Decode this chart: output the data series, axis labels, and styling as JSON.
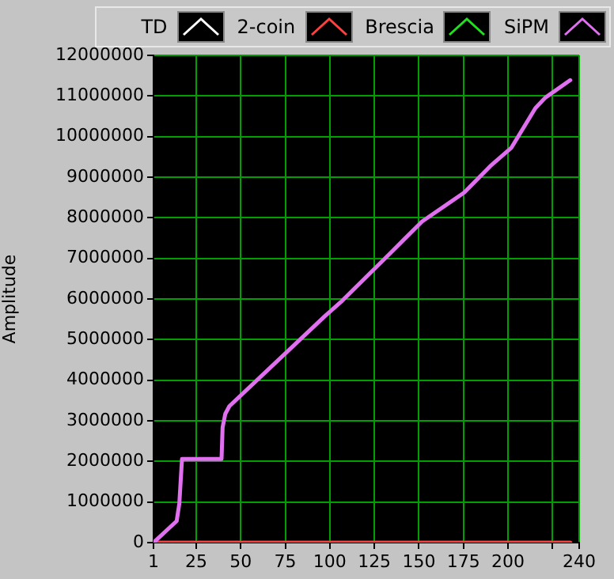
{
  "chart_data": {
    "type": "line",
    "ylabel": "Amplitude",
    "x": [
      1,
      14,
      15.5,
      17,
      39.2,
      39.8,
      41.3,
      43.6,
      97,
      107,
      134,
      151.8,
      175.4,
      190,
      202,
      215.4,
      221,
      235
    ],
    "series": [
      {
        "name": "TD",
        "color": "#ffffff",
        "values": [
          null,
          null,
          null,
          null,
          null,
          null,
          null,
          null,
          null,
          null,
          null,
          null,
          null,
          null,
          null,
          null,
          null,
          null
        ]
      },
      {
        "name": "2-coin",
        "color": "#ff4040",
        "values": [
          0,
          0,
          0,
          0,
          0,
          0,
          0,
          0,
          0,
          0,
          0,
          0,
          0,
          0,
          0,
          0,
          0,
          0
        ]
      },
      {
        "name": "Brescia",
        "color": "#20e020",
        "values": [
          null,
          null,
          null,
          null,
          null,
          null,
          null,
          null,
          null,
          null,
          null,
          null,
          null,
          null,
          null,
          null,
          null,
          null
        ]
      },
      {
        "name": "SiPM",
        "color": "#e070f0",
        "values": [
          0,
          530000,
          960000,
          2060000,
          2060000,
          2840000,
          3170000,
          3360000,
          5570000,
          5960000,
          7130000,
          7910000,
          8620000,
          9270000,
          9730000,
          10700000,
          10960000,
          11390000
        ]
      }
    ],
    "xlim": [
      1,
      240
    ],
    "xticks": [
      1,
      25,
      50,
      75,
      100,
      125,
      150,
      175,
      200,
      {
        "value": 225,
        "label": null
      },
      240
    ],
    "ylim": [
      0,
      12000000
    ],
    "yticks": [
      0,
      1000000,
      2000000,
      3000000,
      4000000,
      5000000,
      6000000,
      7000000,
      8000000,
      9000000,
      10000000,
      11000000,
      12000000
    ],
    "grid": true,
    "legend": "top right",
    "marker": "none",
    "line_style": "solid"
  }
}
